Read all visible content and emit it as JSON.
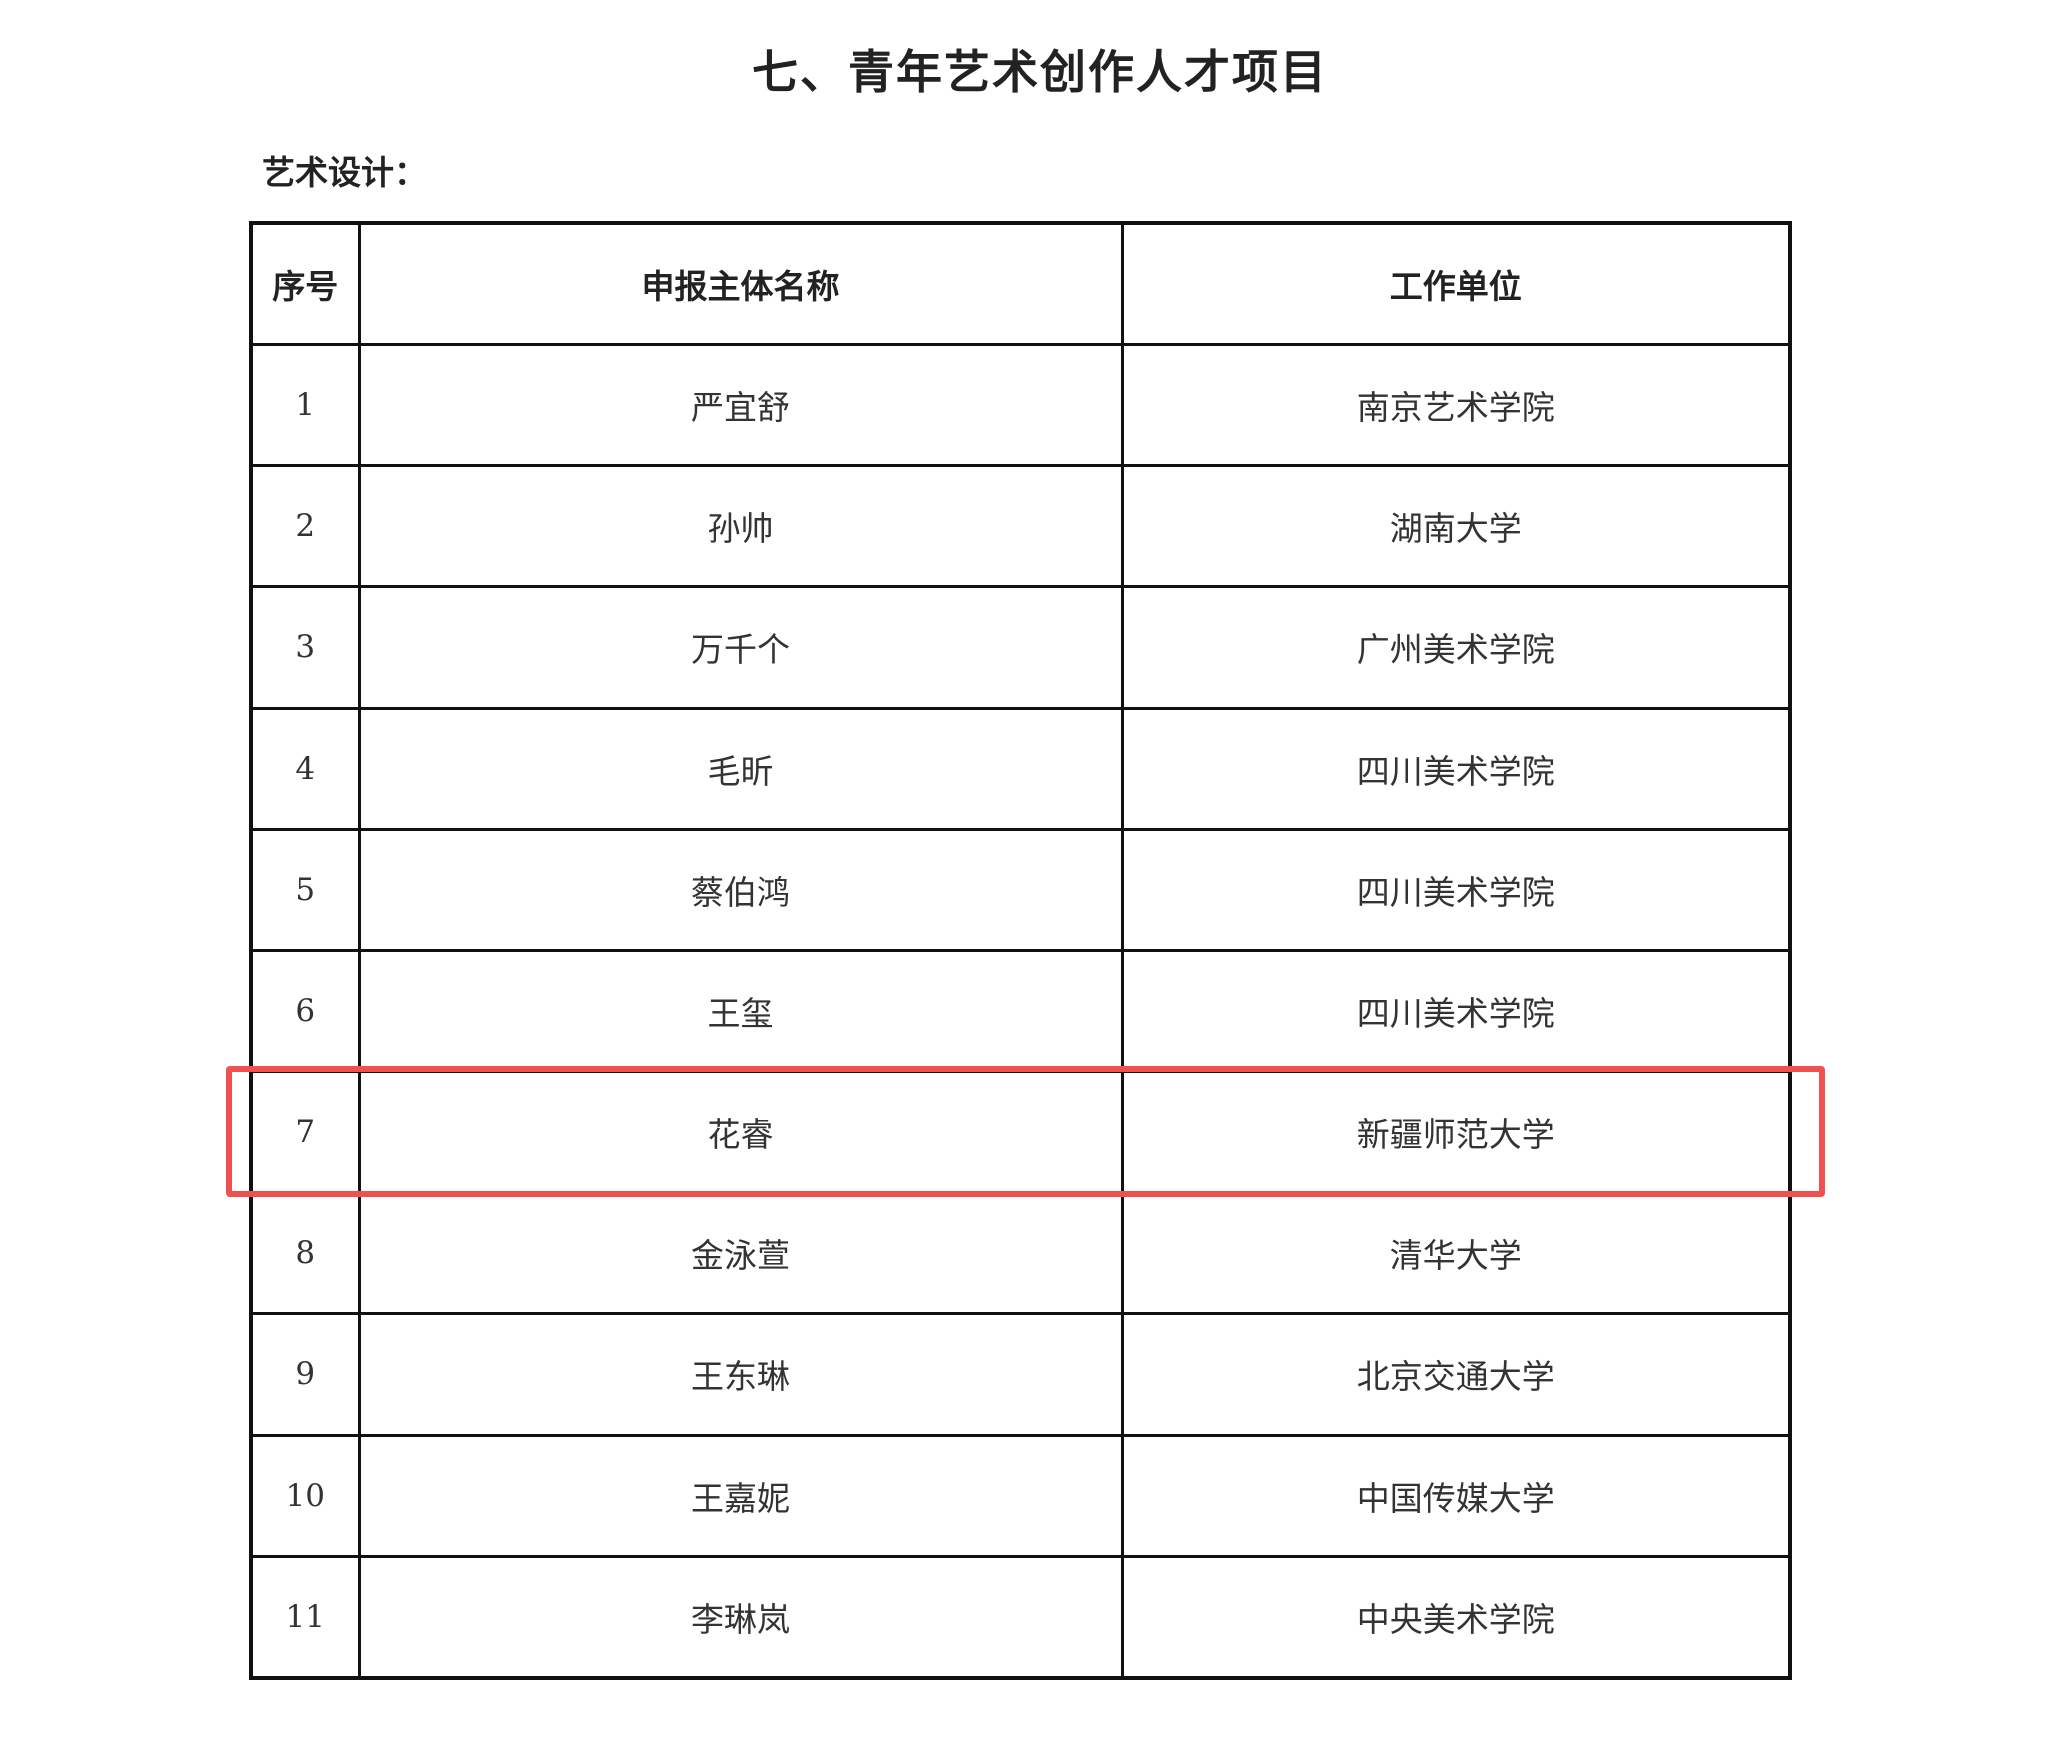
{
  "document": {
    "title": "七、青年艺术创作人才项目",
    "section": "艺术设计：",
    "table": {
      "headers": [
        "序号",
        "申报主体名称",
        "工作单位"
      ],
      "rows": [
        [
          "1",
          "严宜舒",
          "南京艺术学院"
        ],
        [
          "2",
          "孙帅",
          "湖南大学"
        ],
        [
          "3",
          "万千个",
          "广州美术学院"
        ],
        [
          "4",
          "毛昕",
          "四川美术学院"
        ],
        [
          "5",
          "蔡伯鸿",
          "四川美术学院"
        ],
        [
          "6",
          "王玺",
          "四川美术学院"
        ],
        [
          "7",
          "花睿",
          "新疆师范大学"
        ],
        [
          "8",
          "金泳萱",
          "清华大学"
        ],
        [
          "9",
          "王东琳",
          "北京交通大学"
        ],
        [
          "10",
          "王嘉妮",
          "中国传媒大学"
        ],
        [
          "11",
          "李琳岚",
          "中央美术学院"
        ]
      ]
    },
    "highlight": {
      "row": 7,
      "color": "#f05050"
    }
  }
}
